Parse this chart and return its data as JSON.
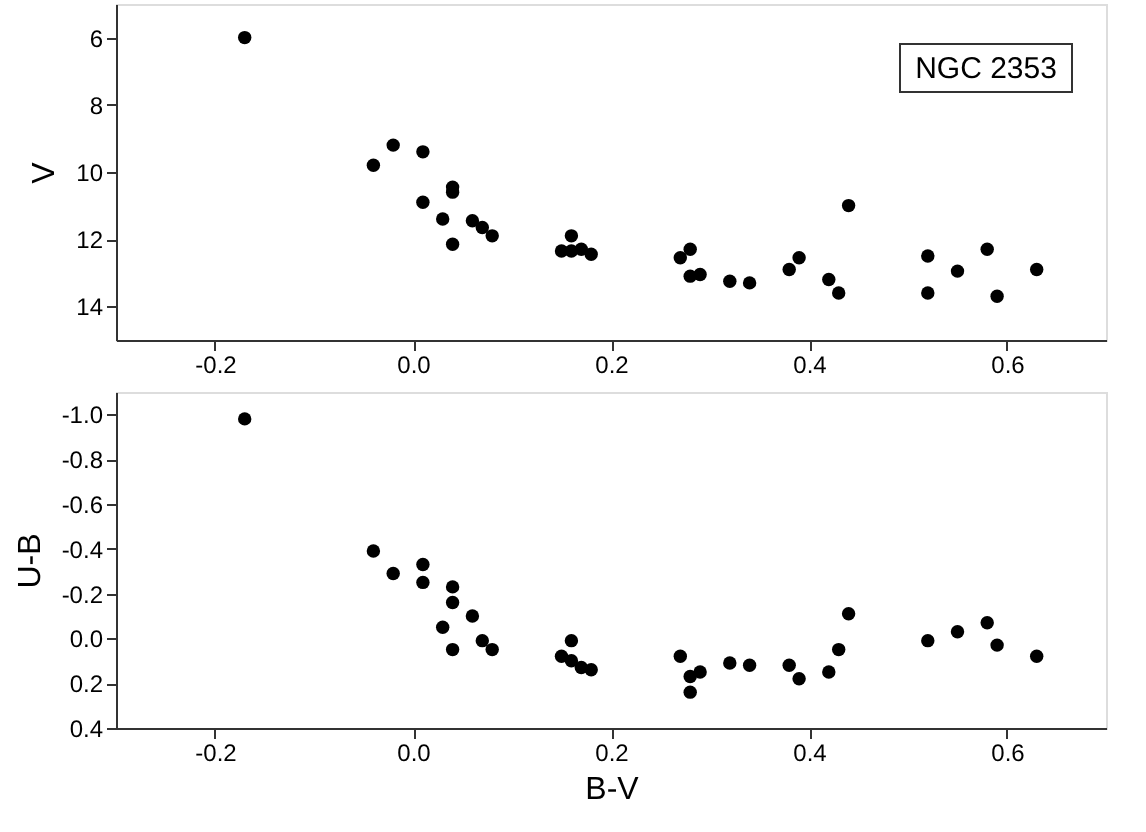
{
  "chart_data": [
    {
      "type": "scatter",
      "ylabel": "V",
      "annotations": [
        "NGC 2353"
      ],
      "marker": "circle",
      "grid": false,
      "x": [
        -0.17,
        -0.04,
        -0.02,
        0.01,
        0.01,
        0.03,
        0.04,
        0.04,
        0.04,
        0.06,
        0.07,
        0.08,
        0.15,
        0.16,
        0.16,
        0.17,
        0.18,
        0.27,
        0.28,
        0.28,
        0.29,
        0.32,
        0.34,
        0.38,
        0.39,
        0.42,
        0.43,
        0.44,
        0.52,
        0.52,
        0.55,
        0.58,
        0.59,
        0.63
      ],
      "series": [
        {
          "color": "#000000",
          "values": [
            6.0,
            9.8,
            9.2,
            9.4,
            10.9,
            11.4,
            10.45,
            10.6,
            12.15,
            11.45,
            11.65,
            11.9,
            12.35,
            11.9,
            12.35,
            12.3,
            12.45,
            12.55,
            12.3,
            13.1,
            13.05,
            13.25,
            13.3,
            12.9,
            12.55,
            13.2,
            13.6,
            11.0,
            12.5,
            13.6,
            12.95,
            12.3,
            13.7,
            12.9
          ]
        }
      ],
      "xlim": [
        -0.3,
        0.7
      ],
      "xticks": [
        {
          "value": -0.2,
          "label": "-0.2"
        },
        {
          "value": 0,
          "label": "0.0"
        },
        {
          "value": 0.2,
          "label": "0.2"
        },
        {
          "value": 0.4,
          "label": "0.4"
        },
        {
          "value": 0.6,
          "label": "0.6"
        }
      ],
      "ylim": [
        15,
        5
      ],
      "yticks": [
        6,
        8,
        10,
        12,
        14
      ]
    },
    {
      "type": "scatter",
      "xlabel": "B-V",
      "ylabel": "U-B",
      "marker": "circle",
      "grid": false,
      "x": [
        -0.17,
        -0.04,
        -0.02,
        0.01,
        0.01,
        0.04,
        0.04,
        0.03,
        0.04,
        0.06,
        0.07,
        0.08,
        0.15,
        0.16,
        0.16,
        0.17,
        0.18,
        0.27,
        0.28,
        0.28,
        0.29,
        0.32,
        0.34,
        0.38,
        0.39,
        0.42,
        0.43,
        0.44,
        0.52,
        0.55,
        0.58,
        0.59,
        0.63
      ],
      "series": [
        {
          "color": "#000000",
          "values": [
            -0.98,
            -0.39,
            -0.29,
            -0.33,
            -0.25,
            -0.23,
            -0.16,
            -0.05,
            0.05,
            -0.1,
            0.01,
            0.05,
            0.08,
            0.01,
            0.1,
            0.13,
            0.14,
            0.08,
            0.17,
            0.24,
            0.15,
            0.11,
            0.12,
            0.12,
            0.18,
            0.15,
            0.05,
            -0.11,
            0.01,
            -0.03,
            -0.07,
            0.03,
            0.08
          ]
        }
      ],
      "xlim": [
        -0.3,
        0.7
      ],
      "xticks": [
        {
          "value": -0.2,
          "label": "-0.2"
        },
        {
          "value": 0,
          "label": "0.0"
        },
        {
          "value": 0.2,
          "label": "0.2"
        },
        {
          "value": 0.4,
          "label": "0.4"
        },
        {
          "value": 0.6,
          "label": "0.6"
        }
      ],
      "ylim": [
        0.4,
        -1.1
      ],
      "yticks": [
        {
          "value": -1.0,
          "label": "-1.0"
        },
        {
          "value": -0.8,
          "label": "-0.8"
        },
        {
          "value": -0.6,
          "label": "-0.6"
        },
        {
          "value": -0.4,
          "label": "-0.4"
        },
        {
          "value": -0.2,
          "label": "-0.2"
        },
        {
          "value": 0,
          "label": "0.0"
        },
        {
          "value": 0.2,
          "label": "0.2"
        },
        {
          "value": 0.4,
          "label": "0.4"
        }
      ]
    }
  ]
}
